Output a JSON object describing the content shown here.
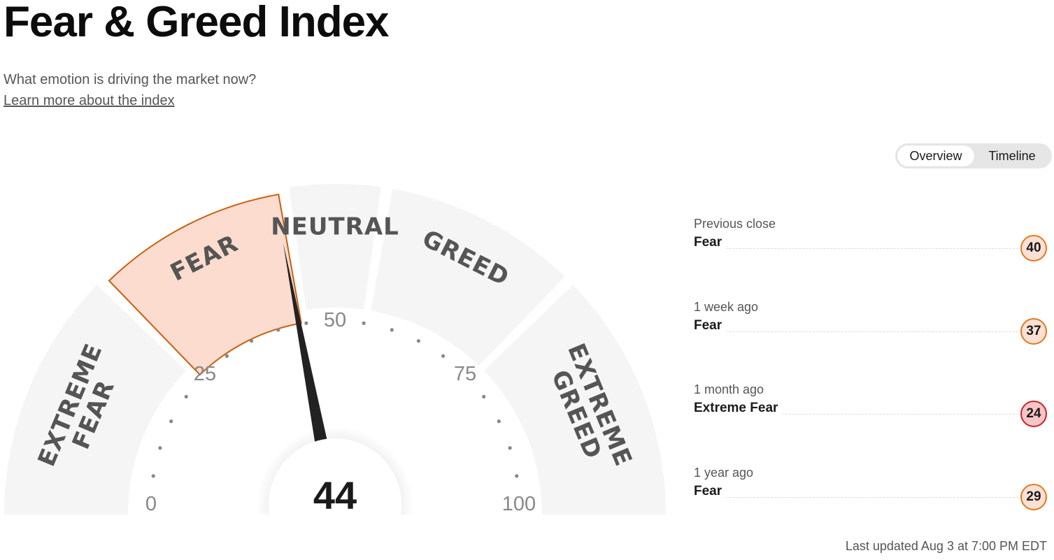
{
  "header": {
    "title": "Fear & Greed Index",
    "subtitle": "What emotion is driving the market now?",
    "learn_more": "Learn more about the index"
  },
  "view_toggle": {
    "options": [
      "Overview",
      "Timeline"
    ],
    "active": "Overview"
  },
  "gauge": {
    "value": 44,
    "value_label": "44",
    "range": [
      0,
      100
    ],
    "zones": [
      {
        "lines": [
          "EXTREME",
          "FEAR"
        ],
        "from": 0,
        "to": 25,
        "active": false
      },
      {
        "lines": [
          "FEAR"
        ],
        "from": 25,
        "to": 45,
        "active": true
      },
      {
        "lines": [
          "NEUTRAL"
        ],
        "from": 45,
        "to": 55,
        "active": false
      },
      {
        "lines": [
          "GREED"
        ],
        "from": 55,
        "to": 75,
        "active": false
      },
      {
        "lines": [
          "EXTREME",
          "GREED"
        ],
        "from": 75,
        "to": 100,
        "active": false
      }
    ],
    "ticks": [
      "0",
      "25",
      "50",
      "75",
      "100"
    ],
    "colors": {
      "zone_fill": "#f5f5f5",
      "active_fill": "#fddcd0",
      "active_stroke": "#c8600e",
      "needle": "#222222"
    }
  },
  "history": [
    {
      "label": "Previous close",
      "rating": "Fear",
      "value": "40",
      "extreme": false
    },
    {
      "label": "1 week ago",
      "rating": "Fear",
      "value": "37",
      "extreme": false
    },
    {
      "label": "1 month ago",
      "rating": "Extreme Fear",
      "value": "24",
      "extreme": true
    },
    {
      "label": "1 year ago",
      "rating": "Fear",
      "value": "29",
      "extreme": false
    }
  ],
  "last_updated": "Last updated Aug 3 at 7:00 PM EDT"
}
